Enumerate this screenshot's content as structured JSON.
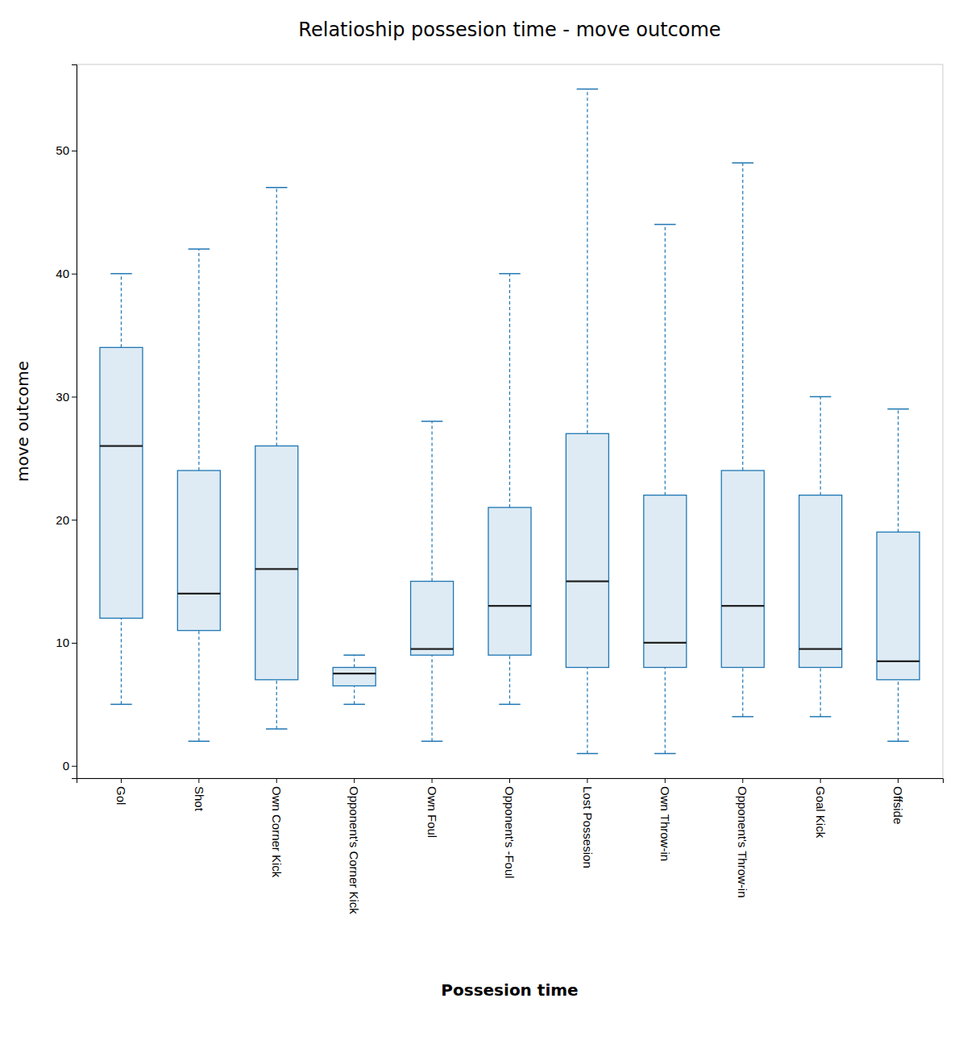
{
  "chart_data": {
    "type": "box",
    "title": "Relatioship possesion time - move outcome",
    "xlabel": "Possesion time",
    "ylabel": "move outcome",
    "categories": [
      "Gol",
      "Shot",
      "Own Corner Kick",
      "Opponent's Corner Kick",
      "Own Foul",
      "Opponent's -Foul",
      "Lost Possesion",
      "Own Throw-in",
      "Opponent's Throw-in",
      "Goal Kick",
      "Offside"
    ],
    "values": [
      {
        "whislo": 5,
        "q1": 12,
        "med": 26,
        "q3": 34,
        "whishi": 40
      },
      {
        "whislo": 2,
        "q1": 11,
        "med": 14,
        "q3": 24,
        "whishi": 42
      },
      {
        "whislo": 3,
        "q1": 7,
        "med": 16,
        "q3": 26,
        "whishi": 47
      },
      {
        "whislo": 5,
        "q1": 6.5,
        "med": 7.5,
        "q3": 8,
        "whishi": 9
      },
      {
        "whislo": 2,
        "q1": 9,
        "med": 9.5,
        "q3": 15,
        "whishi": 28
      },
      {
        "whislo": 5,
        "q1": 9,
        "med": 13,
        "q3": 21,
        "whishi": 40
      },
      {
        "whislo": 1,
        "q1": 8,
        "med": 15,
        "q3": 27,
        "whishi": 55
      },
      {
        "whislo": 1,
        "q1": 8,
        "med": 10,
        "q3": 22,
        "whishi": 44
      },
      {
        "whislo": 4,
        "q1": 8,
        "med": 13,
        "q3": 24,
        "whishi": 49
      },
      {
        "whislo": 4,
        "q1": 8,
        "med": 9.5,
        "q3": 22,
        "whishi": 30
      },
      {
        "whislo": 2,
        "q1": 7,
        "med": 8.5,
        "q3": 19,
        "whishi": 29
      }
    ],
    "ylim": [
      -1,
      57
    ],
    "yticks": [
      0,
      10,
      20,
      30,
      40,
      50
    ],
    "grid": false
  }
}
